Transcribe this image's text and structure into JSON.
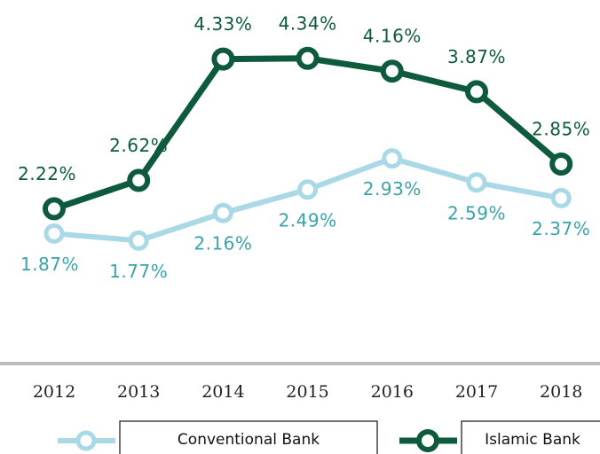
{
  "chart_data": {
    "type": "line",
    "categories": [
      "2012",
      "2013",
      "2014",
      "2015",
      "2016",
      "2017",
      "2018"
    ],
    "series": [
      {
        "name": "Conventional Bank",
        "color": "#a9d8e6",
        "label_color": "#3aa3a8",
        "values": [
          1.87,
          1.77,
          2.16,
          2.49,
          2.93,
          2.59,
          2.37
        ],
        "value_labels": [
          "1.87%",
          "1.77%",
          "2.16%",
          "2.49%",
          "2.93%",
          "2.59%",
          "2.37%"
        ]
      },
      {
        "name": "Islamic Bank",
        "color": "#0e5a3d",
        "label_color": "#0e5a3d",
        "values": [
          2.22,
          2.62,
          4.33,
          4.34,
          4.16,
          3.87,
          2.85
        ],
        "value_labels": [
          "2.22%",
          "2.62%",
          "4.33%",
          "4.34%",
          "4.16%",
          "3.87%",
          "2.85%"
        ]
      }
    ]
  }
}
